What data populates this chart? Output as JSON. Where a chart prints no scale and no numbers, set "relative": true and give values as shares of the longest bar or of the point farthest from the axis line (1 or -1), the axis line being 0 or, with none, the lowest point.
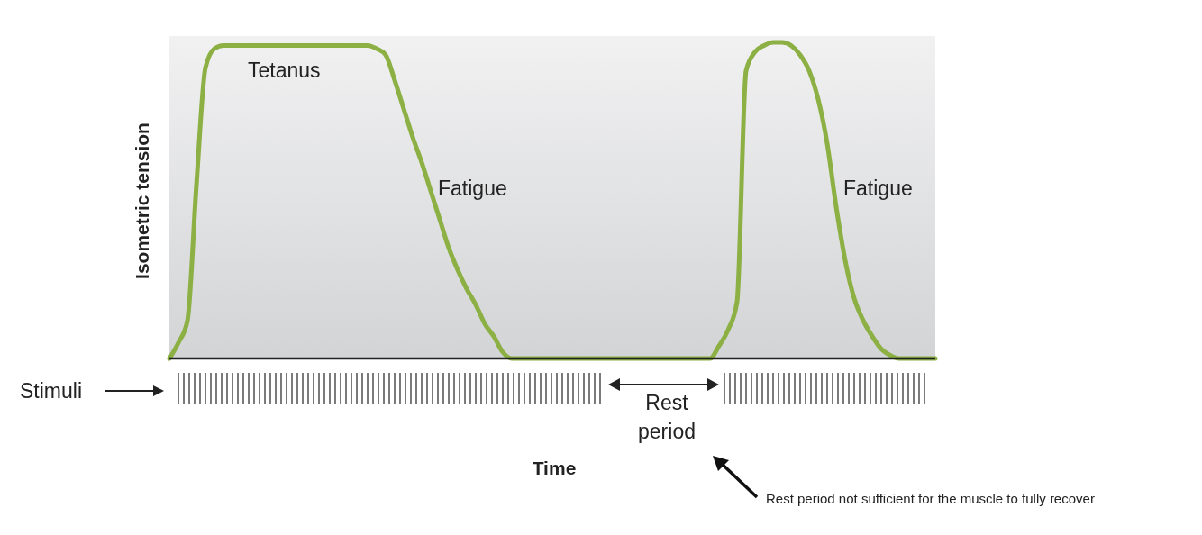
{
  "chart_data": {
    "type": "line",
    "relative": true,
    "ylabel": "Isometric tension",
    "line_style": "solid",
    "marker": "none",
    "categories": [
      null,
      null,
      null,
      null,
      null,
      null,
      null,
      null,
      null,
      null,
      null,
      null,
      null,
      null,
      null,
      null,
      null,
      null,
      null,
      null,
      null,
      null,
      null,
      null,
      null,
      null,
      null,
      null,
      null,
      null,
      null,
      null,
      null,
      null,
      null,
      null,
      null,
      null,
      null,
      null,
      null,
      null,
      null,
      null,
      null,
      null,
      null,
      null,
      null,
      null,
      null,
      null,
      null,
      null,
      null,
      null,
      null,
      null,
      null,
      null,
      null,
      null,
      null,
      null,
      null,
      null,
      null,
      null,
      null,
      null,
      null,
      null,
      null,
      null,
      null,
      null,
      null,
      null,
      null,
      null,
      null,
      null,
      null,
      null,
      null,
      null
    ],
    "series": [
      {
        "color": "#8cb043",
        "values": [
          0,
          0.05,
          0.12,
          0.55,
          0.92,
          0.98,
          0.99,
          0.99,
          0.99,
          0.99,
          0.99,
          0.99,
          0.99,
          0.99,
          0.99,
          0.99,
          0.99,
          0.99,
          0.99,
          0.99,
          0.99,
          0.99,
          0.99,
          0.98,
          0.96,
          0.88,
          0.79,
          0.7,
          0.62,
          0.53,
          0.44,
          0.35,
          0.28,
          0.22,
          0.17,
          0.11,
          0.07,
          0.02,
          0,
          0,
          0,
          0,
          0,
          0,
          0,
          0,
          0,
          0,
          0,
          0,
          0,
          0,
          0,
          0,
          0,
          0,
          0,
          0,
          0,
          0,
          0,
          0.04,
          0.09,
          0.18,
          0.91,
          0.97,
          0.99,
          1,
          1,
          0.99,
          0.96,
          0.91,
          0.82,
          0.68,
          0.48,
          0.31,
          0.19,
          0.12,
          0.07,
          0.03,
          0.01,
          0,
          0,
          0,
          0,
          0
        ]
      }
    ],
    "annotations": [
      "Tetanus",
      "Fatigue",
      "Fatigue",
      "Stimuli",
      "Rest period",
      "Rest period not sufficient for the muscle to fully recover",
      "Time"
    ]
  }
}
